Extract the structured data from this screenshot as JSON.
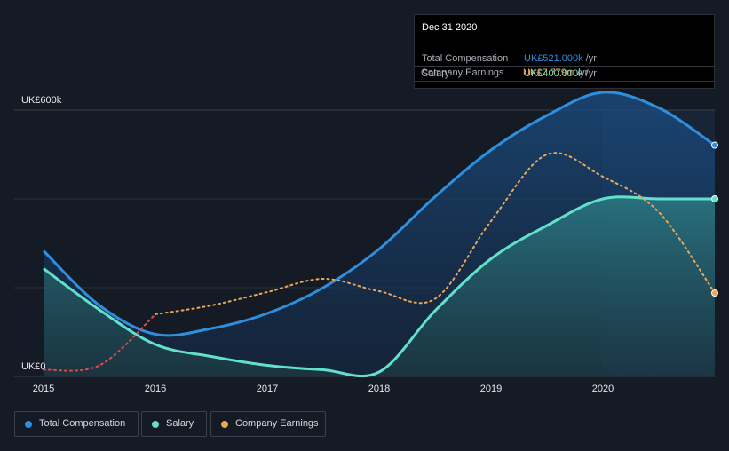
{
  "chart_data": {
    "type": "line",
    "x": [
      2015,
      2015.5,
      2016,
      2016.5,
      2017,
      2017.5,
      2018,
      2018.5,
      2019,
      2019.5,
      2020,
      2020.5,
      2021
    ],
    "series": [
      {
        "name": "Total Compensation",
        "color": "#2e8fe0",
        "values": [
          283,
          160,
          95,
          108,
          142,
          200,
          287,
          405,
          510,
          588,
          640,
          605,
          521
        ]
      },
      {
        "name": "Salary",
        "color": "#62e0cc",
        "values": [
          243,
          150,
          72,
          45,
          25,
          15,
          10,
          148,
          265,
          340,
          400,
          400,
          400
        ]
      },
      {
        "name": "Company Earnings",
        "color": "#e8a857",
        "values": [
          15,
          25,
          140,
          160,
          190,
          220,
          192,
          175,
          350,
          500,
          450,
          370,
          188
        ]
      }
    ],
    "earnings_negative_color": "#e04848",
    "ylim": [
      0,
      600
    ],
    "y_tick_labels": [
      "UK£0",
      "UK£600k"
    ],
    "x_tick_labels": [
      "2015",
      "2016",
      "2017",
      "2018",
      "2019",
      "2020"
    ],
    "grid": true
  },
  "tooltip": {
    "date": "Dec 31 2020",
    "rows": [
      {
        "label": "Total Compensation",
        "value": "UK£521.000k",
        "unit": "/yr",
        "color": "#2e8fe0"
      },
      {
        "label": "Salary",
        "value": "UK£400.000k",
        "unit": "/yr",
        "color": "#62e0cc"
      },
      {
        "label": "Company Earnings",
        "value": "UK£7.779m",
        "unit": "/yr",
        "color": "#e8a857"
      }
    ]
  },
  "legend": [
    {
      "label": "Total Compensation",
      "color": "#2e8fe0"
    },
    {
      "label": "Salary",
      "color": "#62e0cc"
    },
    {
      "label": "Company Earnings",
      "color": "#e8a857"
    }
  ]
}
